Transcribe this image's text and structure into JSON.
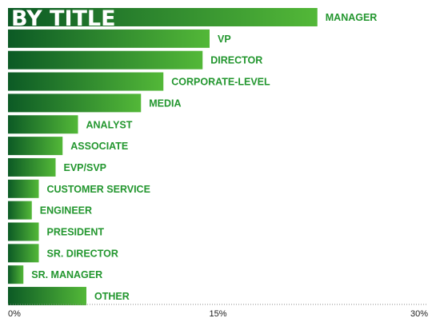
{
  "chart_data": {
    "type": "bar",
    "orientation": "horizontal",
    "title": "BY TITLE",
    "categories": [
      "MANAGER",
      "VP",
      "DIRECTOR",
      "CORPORATE-LEVEL",
      "MEDIA",
      "ANALYST",
      "ASSOCIATE",
      "EVP/SVP",
      "CUSTOMER SERVICE",
      "ENGINEER",
      "PRESIDENT",
      "SR. DIRECTOR",
      "SR. MANAGER",
      "OTHER"
    ],
    "values": [
      22.1,
      14.4,
      13.9,
      11.1,
      9.5,
      5.0,
      3.9,
      3.4,
      2.2,
      1.7,
      2.2,
      2.2,
      1.1,
      5.6
    ],
    "xlim": [
      0,
      30
    ],
    "xticks": [
      "0%",
      "15%",
      "30%"
    ],
    "grid": false,
    "colors": {
      "bar_dark": "#0c5a25",
      "bar_light": "#53b838",
      "label": "#22962e",
      "axis": "#888888"
    }
  }
}
